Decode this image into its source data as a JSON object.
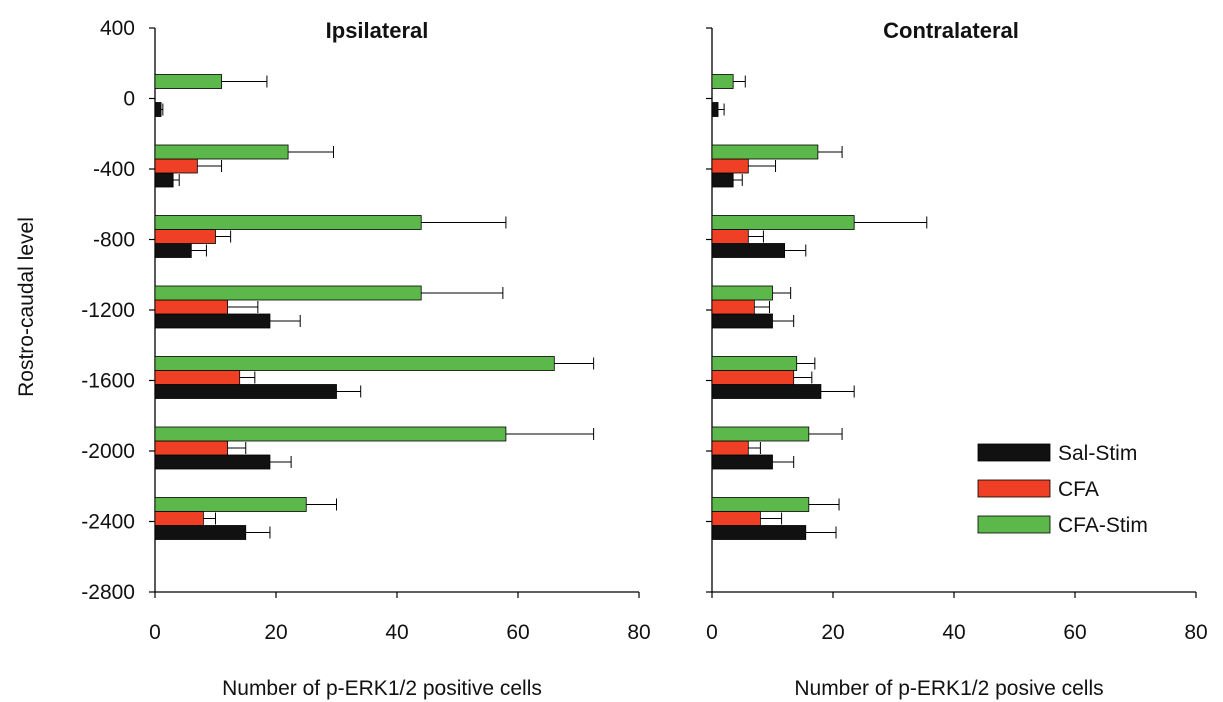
{
  "colors": {
    "Sal-Stim": "#111111",
    "CFA": "#ef4026",
    "CFA-Stim": "#5cb84a",
    "axis": "#000000"
  },
  "chart_data": {
    "type": "bar",
    "orientation": "horizontal",
    "ylabel": "Rostro-caudal level",
    "y_ticks": [
      400,
      0,
      -400,
      -800,
      -1200,
      -1600,
      -2000,
      -2400,
      -2800
    ],
    "ylim": [
      -2800,
      400
    ],
    "x_ticks": [
      0,
      20,
      40,
      60,
      80
    ],
    "xlim": [
      0,
      80
    ],
    "legend": {
      "position": "bottom-right of right panel",
      "entries": [
        "Sal-Stim",
        "CFA",
        "CFA-Stim"
      ]
    },
    "categories": [
      0,
      -400,
      -800,
      -1200,
      -1600,
      -2000,
      -2400
    ],
    "panels": [
      {
        "title": "Ipsilateral",
        "xlabel": "Number of p-ERK1/2 positive cells",
        "series": [
          {
            "name": "Sal-Stim",
            "values": [
              1,
              3,
              6,
              19,
              30,
              19,
              15
            ],
            "errors": [
              0.3,
              1,
              2.5,
              5,
              4,
              3.5,
              4
            ]
          },
          {
            "name": "CFA",
            "values": [
              null,
              7,
              10,
              12,
              14,
              12,
              8
            ],
            "errors": [
              null,
              4,
              2.5,
              5,
              2.5,
              3,
              2
            ]
          },
          {
            "name": "CFA-Stim",
            "values": [
              11,
              22,
              44,
              44,
              66,
              58,
              25
            ],
            "errors": [
              7.5,
              7.5,
              14,
              13.5,
              6.5,
              14.5,
              5
            ]
          }
        ]
      },
      {
        "title": "Contralateral",
        "xlabel": "Number of p-ERK1/2 posive cells",
        "series": [
          {
            "name": "Sal-Stim",
            "values": [
              1,
              3.5,
              12,
              10,
              18,
              10,
              15.5
            ],
            "errors": [
              1,
              1.5,
              3.5,
              3.5,
              5.5,
              3.5,
              5
            ]
          },
          {
            "name": "CFA",
            "values": [
              null,
              6,
              6,
              7,
              13.5,
              6,
              8
            ],
            "errors": [
              null,
              4.5,
              2.5,
              2.5,
              3,
              2,
              3.5
            ]
          },
          {
            "name": "CFA-Stim",
            "values": [
              3.5,
              17.5,
              23.5,
              10,
              14,
              16,
              16
            ],
            "errors": [
              2,
              4,
              12,
              3,
              3,
              5.5,
              5
            ]
          }
        ]
      }
    ]
  }
}
